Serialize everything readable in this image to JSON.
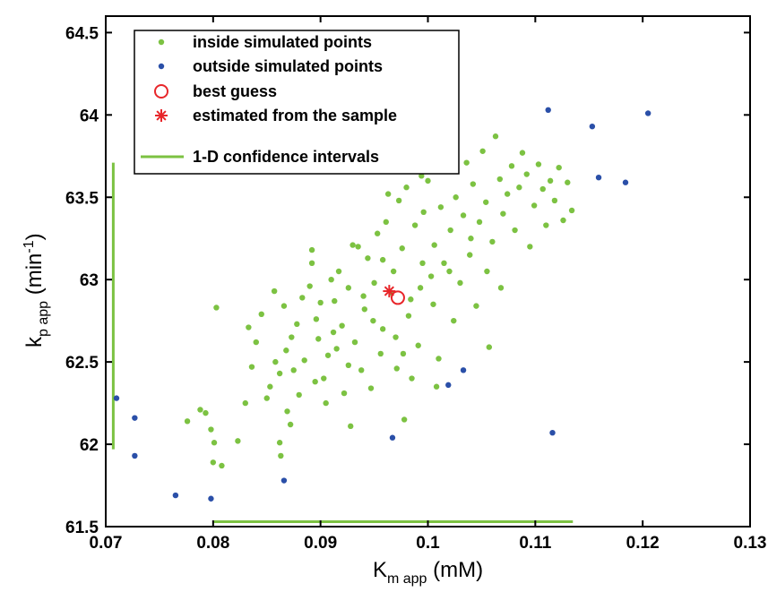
{
  "chart_data": {
    "type": "scatter",
    "xlabel": {
      "main": "K",
      "sub": "m app",
      "unit": " (mM)"
    },
    "ylabel": {
      "main": "k",
      "sub": "p app",
      "unit": " (min",
      "sup": "-1",
      "close": ")"
    },
    "xlim": [
      0.07,
      0.13
    ],
    "ylim": [
      61.5,
      64.6
    ],
    "xticks": [
      0.07,
      0.08,
      0.09,
      0.1,
      0.11,
      0.12,
      0.13
    ],
    "xtick_labels": [
      "0.07",
      "0.08",
      "0.09",
      "0.1",
      "0.11",
      "0.12",
      "0.13"
    ],
    "yticks": [
      61.5,
      62,
      62.5,
      63,
      63.5,
      64,
      64.5
    ],
    "ytick_labels": [
      "61.5",
      "62",
      "62.5",
      "63",
      "63.5",
      "64",
      "64.5"
    ],
    "grid": false,
    "legend_position": "top-left",
    "colors": {
      "inside": "#7cc242",
      "outside": "#2a4fa8",
      "best": "#e8262a",
      "ci": "#7cc242"
    },
    "series": [
      {
        "name": "inside simulated points",
        "marker": "dot",
        "color": "#7cc242",
        "points": [
          [
            0.0788,
            62.21
          ],
          [
            0.0793,
            62.19
          ],
          [
            0.0776,
            62.14
          ],
          [
            0.0798,
            62.09
          ],
          [
            0.0801,
            62.01
          ],
          [
            0.08,
            61.89
          ],
          [
            0.0808,
            61.87
          ],
          [
            0.0823,
            62.02
          ],
          [
            0.0803,
            62.83
          ],
          [
            0.083,
            62.25
          ],
          [
            0.0836,
            62.47
          ],
          [
            0.084,
            62.62
          ],
          [
            0.0845,
            62.79
          ],
          [
            0.0833,
            62.71
          ],
          [
            0.0853,
            62.35
          ],
          [
            0.0858,
            62.5
          ],
          [
            0.0862,
            62.43
          ],
          [
            0.085,
            62.28
          ],
          [
            0.0857,
            62.93
          ],
          [
            0.0866,
            62.84
          ],
          [
            0.0862,
            62.01
          ],
          [
            0.0863,
            61.93
          ],
          [
            0.0869,
            62.2
          ],
          [
            0.0872,
            62.12
          ],
          [
            0.0868,
            62.57
          ],
          [
            0.0878,
            62.73
          ],
          [
            0.0873,
            62.65
          ],
          [
            0.0885,
            62.51
          ],
          [
            0.0883,
            62.89
          ],
          [
            0.089,
            62.96
          ],
          [
            0.0892,
            63.18
          ],
          [
            0.0892,
            63.1
          ],
          [
            0.0896,
            62.76
          ],
          [
            0.0898,
            62.64
          ],
          [
            0.0903,
            62.4
          ],
          [
            0.0907,
            62.54
          ],
          [
            0.0913,
            62.87
          ],
          [
            0.0917,
            63.05
          ],
          [
            0.0922,
            62.31
          ],
          [
            0.092,
            62.72
          ],
          [
            0.0926,
            62.95
          ],
          [
            0.0928,
            62.11
          ],
          [
            0.093,
            63.21
          ],
          [
            0.0932,
            62.62
          ],
          [
            0.0938,
            62.45
          ],
          [
            0.0941,
            62.82
          ],
          [
            0.0944,
            63.13
          ],
          [
            0.0947,
            62.34
          ],
          [
            0.095,
            62.98
          ],
          [
            0.0953,
            63.28
          ],
          [
            0.0956,
            62.55
          ],
          [
            0.0958,
            62.7
          ],
          [
            0.0961,
            63.35
          ],
          [
            0.0963,
            63.52
          ],
          [
            0.0966,
            62.92
          ],
          [
            0.0968,
            63.05
          ],
          [
            0.0971,
            62.46
          ],
          [
            0.0973,
            63.48
          ],
          [
            0.0976,
            63.19
          ],
          [
            0.0978,
            62.15
          ],
          [
            0.098,
            63.56
          ],
          [
            0.0982,
            62.78
          ],
          [
            0.0984,
            62.88
          ],
          [
            0.0988,
            63.33
          ],
          [
            0.0991,
            62.6
          ],
          [
            0.0994,
            63.63
          ],
          [
            0.0996,
            63.41
          ],
          [
            0.1,
            63.6
          ],
          [
            0.1003,
            63.02
          ],
          [
            0.1006,
            63.21
          ],
          [
            0.101,
            62.52
          ],
          [
            0.1012,
            63.44
          ],
          [
            0.1015,
            63.1
          ],
          [
            0.1018,
            63.68
          ],
          [
            0.1021,
            63.3
          ],
          [
            0.1024,
            62.75
          ],
          [
            0.1026,
            63.5
          ],
          [
            0.103,
            62.98
          ],
          [
            0.1033,
            63.39
          ],
          [
            0.1036,
            63.71
          ],
          [
            0.1039,
            63.15
          ],
          [
            0.1042,
            63.58
          ],
          [
            0.1045,
            62.84
          ],
          [
            0.1048,
            63.35
          ],
          [
            0.1051,
            63.78
          ],
          [
            0.1054,
            63.47
          ],
          [
            0.1057,
            62.59
          ],
          [
            0.106,
            63.23
          ],
          [
            0.1063,
            63.87
          ],
          [
            0.1067,
            63.61
          ],
          [
            0.107,
            63.4
          ],
          [
            0.1074,
            63.52
          ],
          [
            0.1078,
            63.69
          ],
          [
            0.1081,
            63.3
          ],
          [
            0.1085,
            63.56
          ],
          [
            0.1088,
            63.77
          ],
          [
            0.1092,
            63.64
          ],
          [
            0.1095,
            63.2
          ],
          [
            0.1099,
            63.45
          ],
          [
            0.1103,
            63.7
          ],
          [
            0.1107,
            63.55
          ],
          [
            0.111,
            63.33
          ],
          [
            0.1114,
            63.6
          ],
          [
            0.1118,
            63.48
          ],
          [
            0.1122,
            63.68
          ],
          [
            0.1126,
            63.36
          ],
          [
            0.113,
            63.59
          ],
          [
            0.1134,
            63.42
          ],
          [
            0.0958,
            63.12
          ],
          [
            0.094,
            62.9
          ],
          [
            0.097,
            62.65
          ],
          [
            0.0985,
            62.4
          ],
          [
            0.0995,
            63.1
          ],
          [
            0.0915,
            62.58
          ],
          [
            0.0905,
            62.25
          ],
          [
            0.0895,
            62.38
          ],
          [
            0.088,
            62.3
          ],
          [
            0.0875,
            62.45
          ],
          [
            0.091,
            63.0
          ],
          [
            0.0935,
            63.2
          ],
          [
            0.1005,
            62.85
          ],
          [
            0.102,
            63.05
          ],
          [
            0.104,
            63.25
          ],
          [
            0.1055,
            63.05
          ],
          [
            0.1068,
            62.95
          ],
          [
            0.1008,
            62.35
          ],
          [
            0.0993,
            62.95
          ],
          [
            0.0977,
            62.55
          ],
          [
            0.0949,
            62.75
          ],
          [
            0.0926,
            62.48
          ],
          [
            0.0912,
            62.68
          ],
          [
            0.09,
            62.86
          ]
        ]
      },
      {
        "name": "outside simulated points",
        "marker": "dot",
        "color": "#2a4fa8",
        "points": [
          [
            0.071,
            62.28
          ],
          [
            0.0727,
            62.16
          ],
          [
            0.0727,
            61.93
          ],
          [
            0.0765,
            61.69
          ],
          [
            0.0798,
            61.67
          ],
          [
            0.0866,
            61.78
          ],
          [
            0.0967,
            62.04
          ],
          [
            0.1019,
            62.36
          ],
          [
            0.1033,
            62.45
          ],
          [
            0.1116,
            62.07
          ],
          [
            0.1112,
            64.03
          ],
          [
            0.1153,
            63.93
          ],
          [
            0.1159,
            63.62
          ],
          [
            0.1184,
            63.59
          ],
          [
            0.1205,
            64.01
          ]
        ]
      },
      {
        "name": "best guess",
        "marker": "circle",
        "color": "#e8262a",
        "points": [
          [
            0.0972,
            62.89
          ]
        ]
      },
      {
        "name": "estimated from the sample",
        "marker": "star",
        "color": "#e8262a",
        "points": [
          [
            0.0964,
            62.93
          ]
        ]
      }
    ],
    "confidence_intervals": {
      "name": "1-D confidence intervals",
      "color": "#7cc242",
      "x_interval": {
        "from": 0.08,
        "to": 0.1135,
        "at_y": 61.53
      },
      "y_interval": {
        "from": 61.97,
        "to": 63.71,
        "at_x": 0.0707
      }
    }
  }
}
